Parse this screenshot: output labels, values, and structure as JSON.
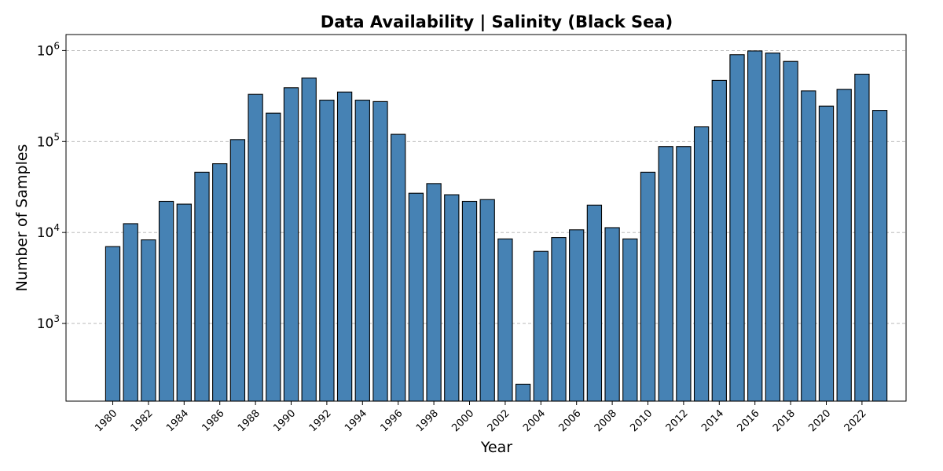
{
  "chart_data": {
    "type": "bar",
    "title": "Data Availability | Salinity (Black Sea)",
    "xlabel": "Year",
    "ylabel": "Number of Samples",
    "yscale": "log",
    "ylim": [
      140,
      1500000
    ],
    "bar_color": "#4682b4",
    "edge_color": "#000000",
    "grid": "y-major-dashed",
    "categories": [
      1980,
      1981,
      1982,
      1983,
      1984,
      1985,
      1986,
      1987,
      1988,
      1989,
      1990,
      1991,
      1992,
      1993,
      1994,
      1995,
      1996,
      1997,
      1998,
      1999,
      2000,
      2001,
      2002,
      2003,
      2004,
      2005,
      2006,
      2007,
      2008,
      2009,
      2010,
      2011,
      2012,
      2013,
      2014,
      2015,
      2016,
      2017,
      2018,
      2019,
      2020,
      2021,
      2022,
      2023
    ],
    "values": [
      7000,
      12500,
      8300,
      22000,
      20500,
      46000,
      57000,
      105000,
      330000,
      205000,
      390000,
      500000,
      285000,
      350000,
      285000,
      275000,
      120000,
      27000,
      34500,
      26000,
      22000,
      23000,
      8500,
      215,
      6200,
      8800,
      10700,
      20000,
      11300,
      8500,
      46000,
      88000,
      88000,
      145000,
      470000,
      900000,
      990000,
      940000,
      760000,
      360000,
      245000,
      375000,
      550000,
      220000
    ],
    "xtick_labels": [
      "1980",
      "1982",
      "1984",
      "1986",
      "1988",
      "1990",
      "1992",
      "1994",
      "1996",
      "1998",
      "2000",
      "2002",
      "2004",
      "2006",
      "2008",
      "2010",
      "2012",
      "2014",
      "2016",
      "2018",
      "2020",
      "2022"
    ],
    "ytick_labels": [
      {
        "base": "10",
        "exp": "3",
        "value": 1000
      },
      {
        "base": "10",
        "exp": "4",
        "value": 10000
      },
      {
        "base": "10",
        "exp": "5",
        "value": 100000
      },
      {
        "base": "10",
        "exp": "6",
        "value": 1000000
      }
    ]
  }
}
